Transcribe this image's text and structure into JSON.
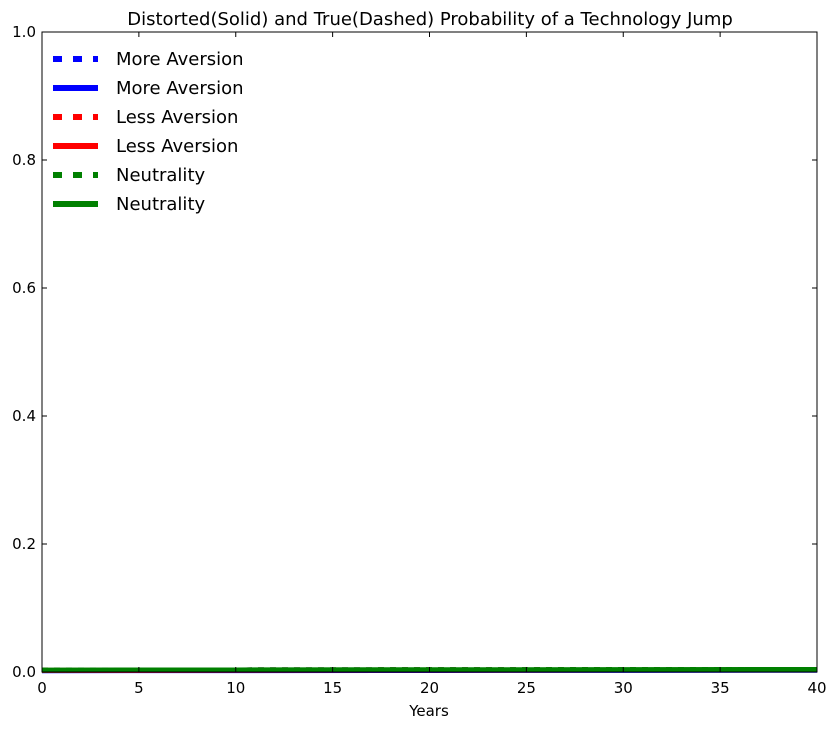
{
  "chart_data": {
    "type": "line",
    "title": "Distorted(Solid) and True(Dashed) Probability of a Technology Jump",
    "xlabel": "Years",
    "ylabel": "",
    "xlim": [
      0,
      40
    ],
    "ylim": [
      0.0,
      1.0
    ],
    "xticks": [
      0,
      5,
      10,
      15,
      20,
      25,
      30,
      35,
      40
    ],
    "xtick_labels": [
      "0",
      "5",
      "10",
      "15",
      "20",
      "25",
      "30",
      "35",
      "40"
    ],
    "yticks": [
      0.0,
      0.2,
      0.4,
      0.6,
      0.8,
      1.0
    ],
    "ytick_labels": [
      "0.0",
      "0.2",
      "0.4",
      "0.6",
      "0.8",
      "1.0"
    ],
    "grid": false,
    "legend_position": "top-left",
    "series": [
      {
        "name": "More Aversion",
        "color": "#0000ff",
        "style": "dashed",
        "x": [
          0,
          10,
          20,
          30,
          40
        ],
        "values": [
          0.003,
          0.0032,
          0.0035,
          0.0037,
          0.004
        ]
      },
      {
        "name": "More Aversion",
        "color": "#0000ff",
        "style": "solid",
        "x": [
          0,
          10,
          20,
          30,
          40
        ],
        "values": [
          0.002,
          0.0022,
          0.0024,
          0.0026,
          0.0028
        ]
      },
      {
        "name": "Less Aversion",
        "color": "#ff0000",
        "style": "dashed",
        "x": [
          0,
          10,
          20,
          30,
          40
        ],
        "values": [
          0.003,
          0.0032,
          0.0035,
          0.0037,
          0.004
        ]
      },
      {
        "name": "Less Aversion",
        "color": "#ff0000",
        "style": "solid",
        "x": [
          0,
          10,
          20,
          30,
          40
        ],
        "values": [
          0.0025,
          0.0027,
          0.0029,
          0.0031,
          0.0033
        ]
      },
      {
        "name": "Neutrality",
        "color": "#008000",
        "style": "dashed",
        "x": [
          0,
          10,
          20,
          30,
          40
        ],
        "values": [
          0.003,
          0.0032,
          0.0035,
          0.0037,
          0.004
        ]
      },
      {
        "name": "Neutrality",
        "color": "#008000",
        "style": "solid",
        "x": [
          0,
          10,
          20,
          30,
          40
        ],
        "values": [
          0.003,
          0.0032,
          0.0035,
          0.0037,
          0.004
        ]
      }
    ]
  }
}
